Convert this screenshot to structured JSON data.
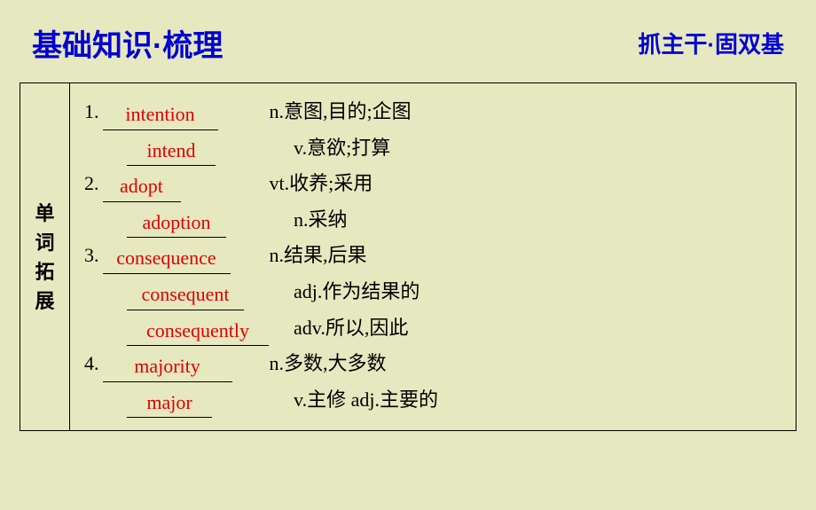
{
  "header": {
    "main_title": "基础知识·梳理",
    "sub_title": "抓主干·固双基"
  },
  "section_label": [
    "单",
    "词",
    "拓",
    "展"
  ],
  "entries": [
    {
      "num": "1.",
      "answer": "intention",
      "blank_width": 130,
      "pos": "n.",
      "def": "意图,目的;企图"
    },
    {
      "num": "",
      "answer": "intend",
      "blank_width": 100,
      "pos": "v.",
      "def": "意欲;打算",
      "indent": true
    },
    {
      "num": "2.",
      "answer": "adopt",
      "blank_width": 88,
      "pos": "vt.",
      "def": "收养;采用"
    },
    {
      "num": "",
      "answer": "adoption",
      "blank_width": 112,
      "pos": "n.",
      "def": "采纳",
      "indent": true
    },
    {
      "num": "3.",
      "answer": "consequence",
      "blank_width": 144,
      "pos": "n.",
      "def": "结果,后果"
    },
    {
      "num": "",
      "answer": "consequent",
      "blank_width": 132,
      "pos": "adj.",
      "def": "作为结果的",
      "indent": true
    },
    {
      "num": "",
      "answer": "consequently",
      "blank_width": 160,
      "pos": "adv.",
      "def": "所以,因此",
      "indent": true
    },
    {
      "num": "4.",
      "answer": "majority",
      "blank_width": 146,
      "pos": "n.",
      "def": "多数,大多数"
    },
    {
      "num": "",
      "answer": "major",
      "blank_width": 96,
      "pos": "v.",
      "def": "主修 adj.主要的",
      "indent": true
    }
  ],
  "colors": {
    "background": "#e6e8c0",
    "title_blue": "#0000d0",
    "answer_red": "#e00000",
    "text_black": "#000000"
  }
}
